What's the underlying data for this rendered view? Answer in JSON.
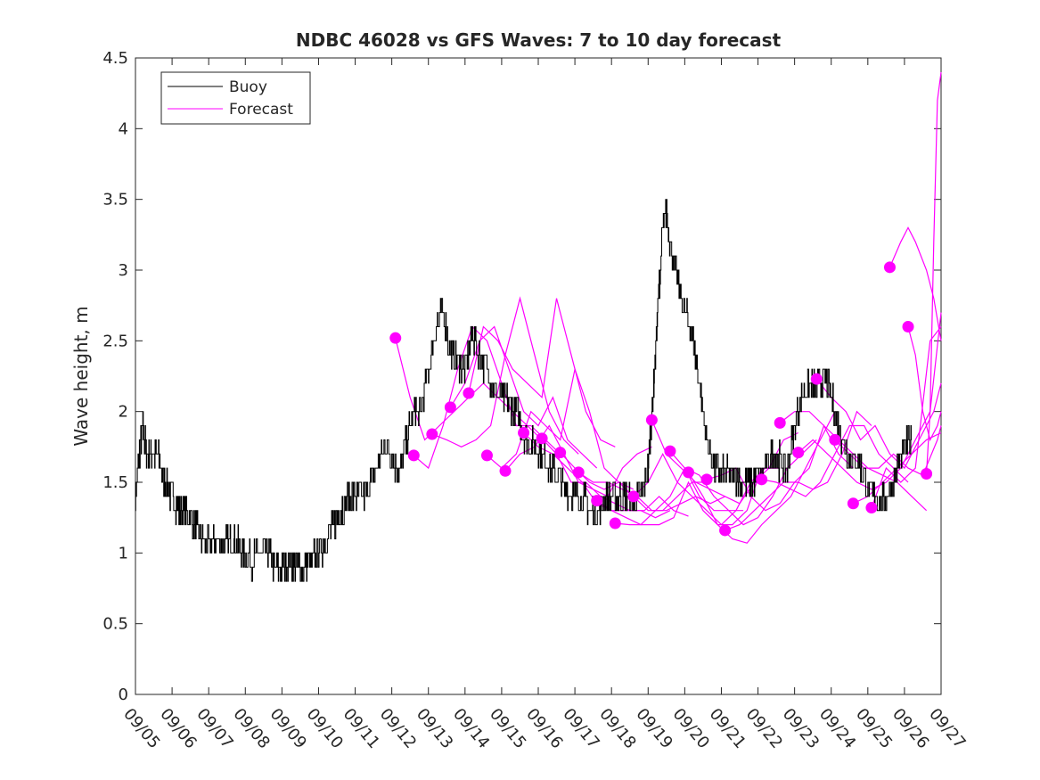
{
  "chart_data": {
    "type": "line",
    "title": "NDBC 46028 vs GFS Waves: 7 to 10 day forecast",
    "xlabel": "",
    "ylabel": "Wave height, m",
    "xlim": [
      5,
      27
    ],
    "ylim": [
      0,
      4.5
    ],
    "yticks": [
      0,
      0.5,
      1,
      1.5,
      2,
      2.5,
      3,
      3.5,
      4,
      4.5
    ],
    "ytick_labels": [
      "0",
      "0.5",
      "1",
      "1.5",
      "2",
      "2.5",
      "3",
      "3.5",
      "4",
      "4.5"
    ],
    "xticks": [
      5,
      6,
      7,
      8,
      9,
      10,
      11,
      12,
      13,
      14,
      15,
      16,
      17,
      18,
      19,
      20,
      21,
      22,
      23,
      24,
      25,
      26,
      27
    ],
    "xtick_labels": [
      "09/05",
      "09/06",
      "09/07",
      "09/08",
      "09/09",
      "09/10",
      "09/11",
      "09/12",
      "09/13",
      "09/14",
      "09/15",
      "09/16",
      "09/17",
      "09/18",
      "09/19",
      "09/20",
      "09/21",
      "09/22",
      "09/23",
      "09/24",
      "09/25",
      "09/26",
      "09/27"
    ],
    "legend": {
      "location": "top-left",
      "entries": [
        "Buoy",
        "Forecast"
      ]
    },
    "colors": {
      "buoy": "#000000",
      "forecast": "#ff00ff",
      "axes": "#262626"
    },
    "buoy": {
      "name": "Buoy",
      "x": [
        5.0,
        5.1,
        5.2,
        5.3,
        5.45,
        5.6,
        5.8,
        6.0,
        6.2,
        6.4,
        6.6,
        6.8,
        7.0,
        7.2,
        7.4,
        7.6,
        7.8,
        8.0,
        8.2,
        8.4,
        8.6,
        8.8,
        9.0,
        9.2,
        9.4,
        9.6,
        9.8,
        10.0,
        10.2,
        10.4,
        10.6,
        10.8,
        11.0,
        11.2,
        11.4,
        11.6,
        11.8,
        12.0,
        12.2,
        12.4,
        12.6,
        12.8,
        13.0,
        13.2,
        13.4,
        13.6,
        13.8,
        14.0,
        14.2,
        14.4,
        14.6,
        14.8,
        15.0,
        15.2,
        15.4,
        15.6,
        15.8,
        16.0,
        16.2,
        16.4,
        16.6,
        16.8,
        17.0,
        17.2,
        17.4,
        17.6,
        17.8,
        18.0,
        18.2,
        18.4,
        18.6,
        18.8,
        19.0,
        19.1,
        19.2,
        19.3,
        19.4,
        19.5,
        19.6,
        19.8,
        20.0,
        20.2,
        20.4,
        20.6,
        20.8,
        21.0,
        21.2,
        21.4,
        21.6,
        21.8,
        22.0,
        22.2,
        22.4,
        22.6,
        22.8,
        23.0,
        23.2,
        23.4,
        23.6,
        23.8,
        24.0,
        24.2,
        24.4,
        24.6,
        24.8,
        25.0,
        25.2,
        25.4,
        25.6,
        25.8,
        26.0,
        26.2
      ],
      "y": [
        1.4,
        1.7,
        1.9,
        1.7,
        1.7,
        1.7,
        1.5,
        1.4,
        1.3,
        1.3,
        1.2,
        1.1,
        1.05,
        1.1,
        1.05,
        1.1,
        1.05,
        1.0,
        0.95,
        1.0,
        1.0,
        0.9,
        0.9,
        0.95,
        0.9,
        0.9,
        0.95,
        1.0,
        1.1,
        1.2,
        1.3,
        1.4,
        1.4,
        1.4,
        1.5,
        1.6,
        1.75,
        1.7,
        1.55,
        1.8,
        2.0,
        2.0,
        2.3,
        2.6,
        2.7,
        2.4,
        2.35,
        2.3,
        2.55,
        2.4,
        2.3,
        2.15,
        2.1,
        2.05,
        2.0,
        1.85,
        1.75,
        1.75,
        1.65,
        1.6,
        1.5,
        1.45,
        1.4,
        1.4,
        1.3,
        1.3,
        1.35,
        1.4,
        1.4,
        1.4,
        1.35,
        1.4,
        1.6,
        2.0,
        2.4,
        2.9,
        3.3,
        3.4,
        3.2,
        2.9,
        2.7,
        2.55,
        2.2,
        1.8,
        1.6,
        1.55,
        1.55,
        1.55,
        1.5,
        1.5,
        1.55,
        1.6,
        1.7,
        1.65,
        1.6,
        1.9,
        2.1,
        2.2,
        2.15,
        2.25,
        2.1,
        1.9,
        1.75,
        1.65,
        1.6,
        1.45,
        1.4,
        1.35,
        1.45,
        1.6,
        1.75,
        1.8
      ]
    },
    "forecasts": [
      {
        "x": [
          12.1,
          12.5,
          12.9,
          13.3,
          13.7,
          14.1,
          14.5,
          14.9,
          15.3,
          15.7,
          16.1
        ],
        "y": [
          2.52,
          2.1,
          1.8,
          1.9,
          2.0,
          2.1,
          2.2,
          2.1,
          2.0,
          1.9,
          1.8
        ]
      },
      {
        "x": [
          12.6,
          13.0,
          13.4,
          13.8,
          14.2,
          14.6,
          15.0,
          15.4,
          15.8,
          16.2,
          16.6
        ],
        "y": [
          1.69,
          1.6,
          1.9,
          2.3,
          2.6,
          2.5,
          2.2,
          1.9,
          1.9,
          1.8,
          1.7
        ]
      },
      {
        "x": [
          13.1,
          13.5,
          13.9,
          14.3,
          14.7,
          15.1,
          15.5,
          15.9,
          16.3,
          16.7,
          17.1
        ],
        "y": [
          1.84,
          1.8,
          1.75,
          1.8,
          1.9,
          2.4,
          2.8,
          2.4,
          2.0,
          1.8,
          1.7
        ]
      },
      {
        "x": [
          13.6,
          14.0,
          14.4,
          14.8,
          15.2,
          15.6,
          16.0,
          16.4,
          16.8,
          17.2,
          17.6
        ],
        "y": [
          2.03,
          2.2,
          2.5,
          2.6,
          2.3,
          2.0,
          1.9,
          2.1,
          1.8,
          1.7,
          1.6
        ]
      },
      {
        "x": [
          14.1,
          14.5,
          14.9,
          15.3,
          15.7,
          16.1,
          16.5,
          16.9,
          17.3,
          17.7,
          18.1
        ],
        "y": [
          2.13,
          2.6,
          2.5,
          2.3,
          2.2,
          2.1,
          2.8,
          2.4,
          2.0,
          1.8,
          1.75
        ]
      },
      {
        "x": [
          14.6,
          15.0,
          15.4,
          15.8,
          16.2,
          16.6,
          17.0,
          17.4,
          17.8,
          18.2,
          18.6
        ],
        "y": [
          1.69,
          1.6,
          1.7,
          2.0,
          1.9,
          1.8,
          2.3,
          2.0,
          1.6,
          1.5,
          1.45
        ]
      },
      {
        "x": [
          15.1,
          15.5,
          15.9,
          16.3,
          16.7,
          17.1,
          17.5,
          17.9,
          18.3,
          18.7,
          19.1
        ],
        "y": [
          1.58,
          1.7,
          1.75,
          1.9,
          1.7,
          1.5,
          1.45,
          1.4,
          1.6,
          1.7,
          1.75
        ]
      },
      {
        "x": [
          15.6,
          16.0,
          16.4,
          16.8,
          17.2,
          17.6,
          18.0,
          18.4,
          18.8,
          19.2,
          19.6
        ],
        "y": [
          1.85,
          1.75,
          1.7,
          1.6,
          1.5,
          1.35,
          1.3,
          1.3,
          1.3,
          1.25,
          1.3
        ]
      },
      {
        "x": [
          16.1,
          16.5,
          16.9,
          17.3,
          17.7,
          18.1,
          18.5,
          18.9,
          19.3,
          19.7,
          20.1
        ],
        "y": [
          1.81,
          1.7,
          1.5,
          1.5,
          1.4,
          1.35,
          1.3,
          1.3,
          1.4,
          1.3,
          1.26
        ]
      },
      {
        "x": [
          16.6,
          17.0,
          17.4,
          17.8,
          18.2,
          18.6,
          19.0,
          19.4,
          19.8,
          20.2,
          20.6
        ],
        "y": [
          1.71,
          1.6,
          1.5,
          1.45,
          1.5,
          1.4,
          1.3,
          1.3,
          1.4,
          1.5,
          1.5
        ]
      },
      {
        "x": [
          17.1,
          17.5,
          17.9,
          18.3,
          18.7,
          19.1,
          19.5,
          19.9,
          20.3,
          20.7,
          21.1
        ],
        "y": [
          1.57,
          1.5,
          1.5,
          1.45,
          1.4,
          1.3,
          1.3,
          1.35,
          1.4,
          1.35,
          1.4
        ]
      },
      {
        "x": [
          17.6,
          18.0,
          18.4,
          18.8,
          19.2,
          19.6,
          20.0,
          20.4,
          20.8,
          21.2,
          21.6
        ],
        "y": [
          1.37,
          1.3,
          1.25,
          1.2,
          1.3,
          1.4,
          1.6,
          1.4,
          1.3,
          1.3,
          1.3
        ]
      },
      {
        "x": [
          18.1,
          18.5,
          18.9,
          19.3,
          19.7,
          20.1,
          20.5,
          20.9,
          21.3,
          21.7,
          22.1
        ],
        "y": [
          1.21,
          1.2,
          1.2,
          1.2,
          1.25,
          1.5,
          1.3,
          1.2,
          1.2,
          1.3,
          1.6
        ]
      },
      {
        "x": [
          18.6,
          19.0,
          19.4,
          19.8,
          20.2,
          20.6,
          21.0,
          21.4,
          21.8,
          22.2,
          22.6
        ],
        "y": [
          1.4,
          1.5,
          1.7,
          1.5,
          1.4,
          1.3,
          1.2,
          1.3,
          1.5,
          1.6,
          1.6
        ]
      },
      {
        "x": [
          19.1,
          19.5,
          19.9,
          20.3,
          20.7,
          21.1,
          21.5,
          21.9,
          22.3,
          22.7,
          23.1
        ],
        "y": [
          1.94,
          1.7,
          1.6,
          1.5,
          1.45,
          1.4,
          1.35,
          1.5,
          1.6,
          1.8,
          1.85
        ]
      },
      {
        "x": [
          19.6,
          20.0,
          20.4,
          20.8,
          21.2,
          21.6,
          22.0,
          22.4,
          22.8,
          23.2,
          23.6
        ],
        "y": [
          1.72,
          1.6,
          1.55,
          1.4,
          1.3,
          1.2,
          1.25,
          1.4,
          1.6,
          1.7,
          1.8
        ]
      },
      {
        "x": [
          20.1,
          20.5,
          20.9,
          21.3,
          21.7,
          22.1,
          22.5,
          22.9,
          23.3,
          23.7,
          24.1
        ],
        "y": [
          1.57,
          1.4,
          1.2,
          1.1,
          1.07,
          1.2,
          1.3,
          1.4,
          1.6,
          1.8,
          2.0
        ]
      },
      {
        "x": [
          20.6,
          21.0,
          21.4,
          21.8,
          22.2,
          22.6,
          23.0,
          23.4,
          23.8,
          24.2,
          24.6
        ],
        "y": [
          1.52,
          1.55,
          1.6,
          1.4,
          1.3,
          1.35,
          1.5,
          1.6,
          1.9,
          1.7,
          1.6
        ]
      },
      {
        "x": [
          21.1,
          21.5,
          21.9,
          22.3,
          22.7,
          23.1,
          23.5,
          23.9,
          24.3,
          24.7,
          25.1
        ],
        "y": [
          1.16,
          1.2,
          1.3,
          1.4,
          1.5,
          1.5,
          1.45,
          1.5,
          1.7,
          2.0,
          1.9
        ]
      },
      {
        "x": [
          22.1,
          22.5,
          22.9,
          23.3,
          23.7,
          24.1,
          24.5,
          24.9,
          25.3,
          25.7,
          26.1
        ],
        "y": [
          1.52,
          1.5,
          1.45,
          1.4,
          1.5,
          1.7,
          1.9,
          1.9,
          1.7,
          1.6,
          1.5
        ]
      },
      {
        "x": [
          22.6,
          23.0,
          23.4,
          23.8,
          24.2,
          24.6,
          25.0,
          25.4,
          25.8,
          26.2,
          26.6
        ],
        "y": [
          1.92,
          2.0,
          2.0,
          1.9,
          1.8,
          1.7,
          1.6,
          1.55,
          1.5,
          1.4,
          1.3
        ]
      },
      {
        "x": [
          23.1,
          23.5,
          23.9,
          24.3,
          24.7,
          25.1,
          25.5,
          25.9,
          26.3,
          26.7,
          27.0
        ],
        "y": [
          1.71,
          1.8,
          1.7,
          1.6,
          1.5,
          1.45,
          1.5,
          1.6,
          1.8,
          2.0,
          2.7
        ]
      },
      {
        "x": [
          23.6,
          24.0,
          24.4,
          24.8,
          25.2,
          25.6,
          26.0,
          26.4,
          26.8,
          27.0
        ],
        "y": [
          2.23,
          2.1,
          2.0,
          1.8,
          1.9,
          1.7,
          1.6,
          1.8,
          2.0,
          2.2
        ]
      },
      {
        "x": [
          24.1,
          24.5,
          24.9,
          25.3,
          25.7,
          26.1,
          26.5,
          26.9,
          27.0
        ],
        "y": [
          1.8,
          1.7,
          1.6,
          1.6,
          1.7,
          1.6,
          1.55,
          1.8,
          1.9
        ]
      },
      {
        "x": [
          24.6,
          25.0,
          25.4,
          25.8,
          26.2,
          26.6,
          27.0
        ],
        "y": [
          1.35,
          1.4,
          1.5,
          1.6,
          1.7,
          1.8,
          1.85
        ]
      },
      {
        "x": [
          25.1,
          25.5,
          25.9,
          26.3,
          26.7,
          27.0
        ],
        "y": [
          1.32,
          1.6,
          1.5,
          1.6,
          2.5,
          2.6
        ]
      },
      {
        "x": [
          25.6,
          25.9,
          26.1,
          26.3,
          26.6,
          26.8,
          27.0
        ],
        "y": [
          3.02,
          3.2,
          3.3,
          3.2,
          3.0,
          2.8,
          2.5
        ]
      },
      {
        "x": [
          26.1,
          26.3,
          26.5,
          26.7,
          26.9,
          27.0
        ],
        "y": [
          2.6,
          2.4,
          2.0,
          1.8,
          1.9,
          2.0
        ]
      },
      {
        "x": [
          26.6,
          26.7,
          26.8,
          26.9,
          27.0
        ],
        "y": [
          1.56,
          2.0,
          3.2,
          4.2,
          4.4
        ]
      }
    ],
    "markers": {
      "name": "Forecast",
      "x": [
        12.1,
        12.6,
        13.1,
        13.6,
        14.1,
        14.6,
        15.1,
        15.6,
        16.1,
        16.6,
        17.1,
        17.6,
        18.1,
        18.6,
        19.1,
        19.6,
        20.1,
        20.6,
        21.1,
        22.1,
        22.6,
        23.1,
        23.6,
        24.1,
        24.6,
        25.1,
        25.6,
        26.1,
        26.6
      ],
      "y": [
        2.52,
        1.69,
        1.84,
        2.03,
        2.13,
        1.69,
        1.58,
        1.85,
        1.81,
        1.71,
        1.57,
        1.37,
        1.21,
        1.4,
        1.94,
        1.72,
        1.57,
        1.52,
        1.16,
        1.52,
        1.92,
        1.71,
        2.23,
        1.8,
        1.35,
        1.32,
        3.02,
        2.6,
        1.56
      ]
    }
  }
}
